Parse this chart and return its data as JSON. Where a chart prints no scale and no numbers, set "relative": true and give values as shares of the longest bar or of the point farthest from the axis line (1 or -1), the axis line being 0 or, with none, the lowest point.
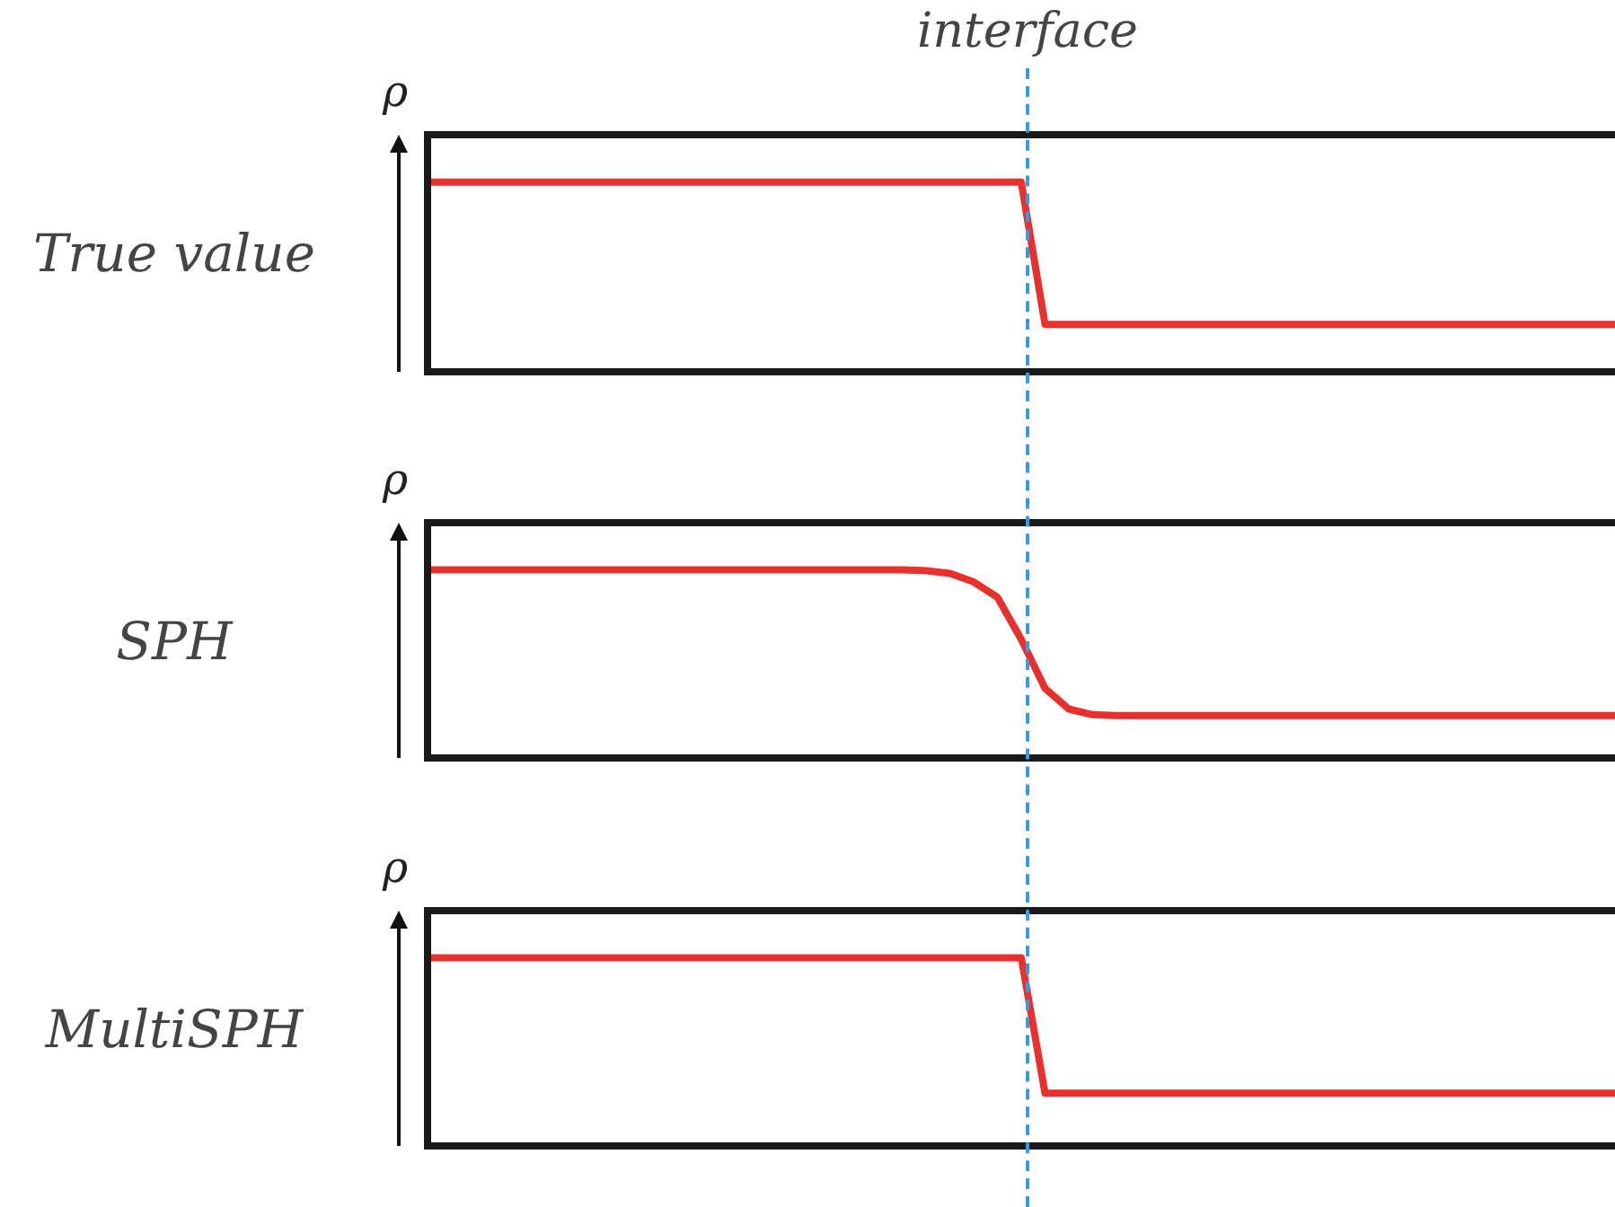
{
  "chart_data": [
    {
      "type": "line",
      "title": "True value",
      "ylabel": "ρ",
      "relative": true,
      "tick_labels": false,
      "color": "#e8302e",
      "marker": "none",
      "line_style": "solid",
      "annotations": [
        "interface"
      ],
      "categories": [
        null,
        null,
        null,
        null,
        null,
        null,
        null,
        null,
        null,
        null,
        null,
        null,
        null,
        null,
        null,
        null,
        null,
        null,
        null,
        null,
        null,
        null,
        null,
        null,
        null,
        null,
        null,
        null,
        null,
        null,
        null,
        null,
        null,
        null,
        null,
        null,
        null,
        null,
        null,
        null,
        null,
        null,
        null,
        null,
        null,
        null,
        null,
        null,
        null,
        null,
        null
      ],
      "values": [
        1,
        1,
        1,
        1,
        1,
        1,
        1,
        1,
        1,
        1,
        1,
        1,
        1,
        1,
        1,
        1,
        1,
        1,
        1,
        1,
        1,
        1,
        1,
        1,
        1,
        1,
        0.25,
        0.25,
        0.25,
        0.25,
        0.25,
        0.25,
        0.25,
        0.25,
        0.25,
        0.25,
        0.25,
        0.25,
        0.25,
        0.25,
        0.25,
        0.25,
        0.25,
        0.25,
        0.25,
        0.25,
        0.25,
        0.25,
        0.25,
        0.25,
        0.25
      ]
    },
    {
      "type": "line",
      "title": "SPH",
      "ylabel": "ρ",
      "relative": true,
      "tick_labels": false,
      "color": "#e8302e",
      "marker": "none",
      "line_style": "solid",
      "categories": [
        null,
        null,
        null,
        null,
        null,
        null,
        null,
        null,
        null,
        null,
        null,
        null,
        null,
        null,
        null,
        null,
        null,
        null,
        null,
        null,
        null,
        null,
        null,
        null,
        null,
        null,
        null,
        null,
        null,
        null,
        null,
        null,
        null,
        null,
        null,
        null,
        null,
        null,
        null,
        null,
        null,
        null,
        null,
        null,
        null,
        null,
        null,
        null,
        null,
        null,
        null
      ],
      "values": [
        1,
        1,
        1,
        1,
        1,
        1,
        1,
        1,
        1,
        1,
        1,
        1,
        1,
        1,
        1,
        1,
        1,
        1,
        1,
        1,
        1,
        0.995,
        0.98,
        0.935,
        0.853,
        0.63,
        0.37,
        0.26,
        0.23,
        0.225,
        0.225,
        0.225,
        0.225,
        0.225,
        0.225,
        0.225,
        0.225,
        0.225,
        0.225,
        0.225,
        0.225,
        0.225,
        0.225,
        0.225,
        0.225,
        0.225,
        0.225,
        0.225,
        0.225,
        0.225,
        0.225
      ]
    },
    {
      "type": "line",
      "title": "MultiSPH",
      "ylabel": "ρ",
      "relative": true,
      "tick_labels": false,
      "color": "#e8302e",
      "marker": "none",
      "line_style": "solid",
      "categories": [
        null,
        null,
        null,
        null,
        null,
        null,
        null,
        null,
        null,
        null,
        null,
        null,
        null,
        null,
        null,
        null,
        null,
        null,
        null,
        null,
        null,
        null,
        null,
        null,
        null,
        null,
        null,
        null,
        null,
        null,
        null,
        null,
        null,
        null,
        null,
        null,
        null,
        null,
        null,
        null,
        null,
        null,
        null,
        null,
        null,
        null,
        null,
        null,
        null,
        null,
        null
      ],
      "values": [
        1,
        1,
        1,
        1,
        1,
        1,
        1,
        1,
        1,
        1,
        1,
        1,
        1,
        1,
        1,
        1,
        1,
        1,
        1,
        1,
        1,
        1,
        1,
        1,
        1,
        1,
        0.28,
        0.28,
        0.28,
        0.28,
        0.28,
        0.28,
        0.28,
        0.28,
        0.28,
        0.28,
        0.28,
        0.28,
        0.28,
        0.28,
        0.28,
        0.28,
        0.28,
        0.28,
        0.28,
        0.28,
        0.28,
        0.28,
        0.28,
        0.28,
        0.28
      ]
    }
  ]
}
